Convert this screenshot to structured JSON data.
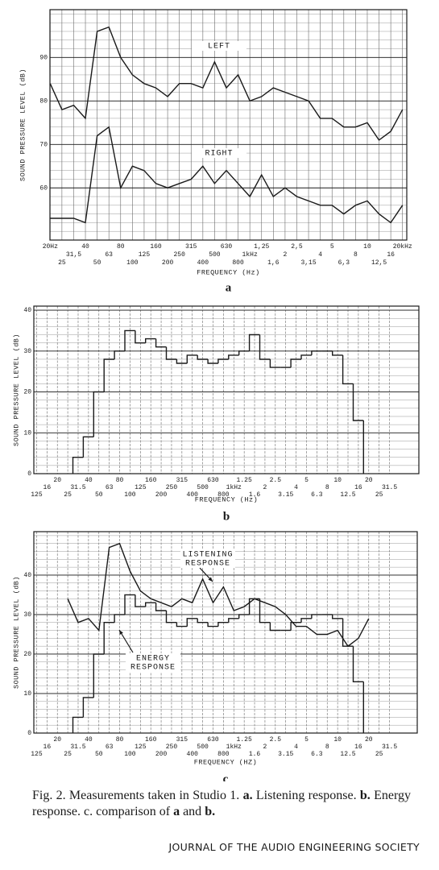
{
  "chart_data": [
    {
      "type": "line",
      "label": "a",
      "ylabel": "SOUND PRESSURE LEVEL (dB)",
      "xlabel": "FREQUENCY (Hz)",
      "categories": [
        "20Hz",
        "25",
        "31,5",
        "40",
        "50",
        "63",
        "80",
        "100",
        "125",
        "160",
        "200",
        "250",
        "315",
        "400",
        "500",
        "630",
        "800",
        "1kHz",
        "1,25",
        "1,6",
        "2",
        "2,5",
        "3,15",
        "4",
        "5",
        "6,3",
        "8",
        "10",
        "12,5",
        "16",
        "20kHz"
      ],
      "series": [
        {
          "name": "LEFT",
          "color": "#1a1a1a",
          "values": [
            84,
            78,
            79,
            76,
            96,
            97,
            90,
            86,
            84,
            83,
            81,
            84,
            84,
            83,
            89,
            83,
            86,
            80,
            81,
            83,
            82,
            81,
            80,
            76,
            76,
            74,
            74,
            75,
            71,
            73,
            78
          ]
        },
        {
          "name": "RIGHT",
          "color": "#1a1a1a",
          "values": [
            53,
            53,
            53,
            52,
            72,
            74,
            60,
            65,
            64,
            61,
            60,
            61,
            62,
            65,
            61,
            64,
            61,
            58,
            63,
            58,
            60,
            58,
            57,
            56,
            56,
            54,
            56,
            57,
            54,
            52,
            56
          ]
        }
      ],
      "annotations": [
        "LEFT",
        "RIGHT"
      ],
      "ylim": [
        48,
        101
      ],
      "yticks": [
        60,
        70,
        80,
        90
      ],
      "grid": true
    },
    {
      "type": "step",
      "label": "b",
      "ylabel": "SOUND PRESSURE LEVEL (dB)",
      "xlabel": "FREQUENCY (Hz)",
      "categories": [
        "125",
        "16",
        "20",
        "25",
        "31.5",
        "40",
        "50",
        "63",
        "80",
        "100",
        "125",
        "160",
        "200",
        "250",
        "315",
        "400",
        "500",
        "630",
        "800",
        "1kHz",
        "1.25",
        "1.6",
        "2",
        "2.5",
        "3.15",
        "4",
        "5",
        "6.3",
        "8",
        "10",
        "12.5",
        "16",
        "20",
        "25",
        "31.5"
      ],
      "series": [
        {
          "name": "ENERGY RESPONSE",
          "color": "#1a1a1a",
          "type": "step",
          "values": [
            null,
            null,
            null,
            null,
            4,
            9,
            20,
            28,
            30,
            35,
            32,
            33,
            31,
            28,
            27,
            29,
            28,
            27,
            28,
            29,
            30,
            34,
            28,
            26,
            26,
            28,
            29,
            30,
            30,
            29,
            22,
            13,
            null,
            null,
            null
          ]
        }
      ],
      "ylim": [
        0,
        41
      ],
      "yticks": [
        0,
        10,
        20,
        30,
        40
      ],
      "grid": true
    },
    {
      "type": "line",
      "label": "c",
      "ylabel": "SOUND PRESSURE LEVEL (dB)",
      "xlabel": "FREQUENCY (HZ)",
      "categories": [
        "125",
        "16",
        "20",
        "25",
        "31.5",
        "40",
        "50",
        "63",
        "80",
        "100",
        "125",
        "160",
        "200",
        "250",
        "315",
        "400",
        "500",
        "630",
        "800",
        "1kHz",
        "1.25",
        "1.6",
        "2",
        "2.5",
        "3.15",
        "4",
        "5",
        "6.3",
        "8",
        "10",
        "12.5",
        "16",
        "20",
        "25",
        "31.5"
      ],
      "series": [
        {
          "name": "LISTENING RESPONSE",
          "color": "#1a1a1a",
          "type": "line",
          "values": [
            null,
            null,
            null,
            34,
            28,
            29,
            26,
            47,
            48,
            41,
            36,
            34,
            33,
            32,
            34,
            33,
            39,
            33,
            37,
            31,
            32,
            34,
            33,
            32,
            30,
            27,
            27,
            25,
            25,
            26,
            22,
            24,
            29,
            null,
            null
          ]
        },
        {
          "name": "ENERGY RESPONSE",
          "color": "#1a1a1a",
          "type": "step",
          "values": [
            null,
            null,
            null,
            null,
            4,
            9,
            20,
            28,
            30,
            35,
            32,
            33,
            31,
            28,
            27,
            29,
            28,
            27,
            28,
            29,
            30,
            34,
            28,
            26,
            26,
            28,
            29,
            30,
            30,
            29,
            22,
            13,
            null,
            null,
            null
          ]
        }
      ],
      "annotations": [
        "LISTENING",
        "RESPONSE",
        "ENERGY",
        "RESPONSE"
      ],
      "ylim": [
        0,
        51
      ],
      "yticks": [
        0,
        10,
        20,
        30,
        40
      ],
      "grid": true
    }
  ],
  "caption": [
    {
      "text": "Fig. 2. Measurements taken in Studio 1."
    },
    {
      "text": "a.",
      "bold": true
    },
    {
      "text": "Listening response."
    },
    {
      "text": "b.",
      "bold": true
    },
    {
      "text": "Energy response."
    },
    {
      "text": "c."
    },
    {
      "text": "comparison of"
    },
    {
      "text": "a",
      "bold": true
    },
    {
      "text": "and"
    },
    {
      "text": "b.",
      "bold": true
    }
  ],
  "footer": "JOURNAL OF THE AUDIO ENGINEERING SOCIETY"
}
